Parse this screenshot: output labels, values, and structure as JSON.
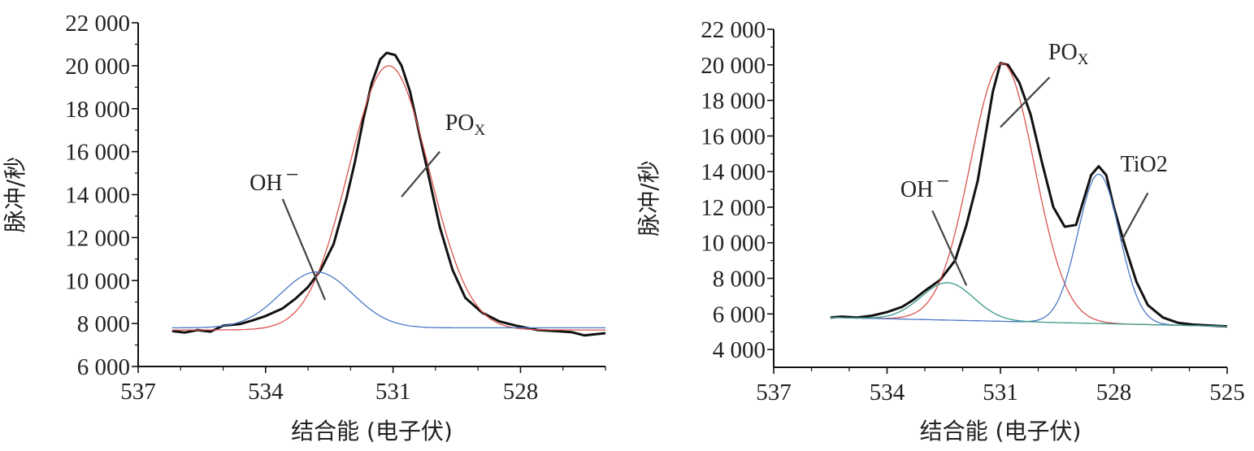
{
  "chart_data": [
    {
      "type": "line",
      "xlabel": "结合能 (电子伏)",
      "ylabel": "脉冲/秒",
      "xlim": [
        537,
        526
      ],
      "ylim": [
        6000,
        22000
      ],
      "x_reversed": true,
      "xticks": [
        537,
        534,
        531,
        528
      ],
      "yticks": [
        6000,
        8000,
        10000,
        12000,
        14000,
        16000,
        18000,
        20000,
        22000
      ],
      "ytick_labels": [
        "6 000",
        "8 000",
        "10 000",
        "12 000",
        "14 000",
        "16 000",
        "18 000",
        "20 000",
        "22 000"
      ],
      "grid": false,
      "series": [
        {
          "color": "#111111",
          "kind": "raw",
          "points": [
            [
              536.2,
              7650
            ],
            [
              535.9,
              7580
            ],
            [
              535.6,
              7700
            ],
            [
              535.3,
              7620
            ],
            [
              535.0,
              7900
            ],
            [
              534.6,
              7980
            ],
            [
              534.3,
              8150
            ],
            [
              534.0,
              8350
            ],
            [
              533.6,
              8700
            ],
            [
              533.3,
              9150
            ],
            [
              533.0,
              9700
            ],
            [
              532.7,
              10500
            ],
            [
              532.4,
              11700
            ],
            [
              532.1,
              13800
            ],
            [
              531.9,
              15500
            ],
            [
              531.7,
              17500
            ],
            [
              531.5,
              19200
            ],
            [
              531.3,
              20300
            ],
            [
              531.15,
              20600
            ],
            [
              530.95,
              20500
            ],
            [
              530.8,
              20000
            ],
            [
              530.6,
              18800
            ],
            [
              530.4,
              17000
            ],
            [
              530.2,
              15200
            ],
            [
              529.9,
              12500
            ],
            [
              529.6,
              10500
            ],
            [
              529.3,
              9200
            ],
            [
              528.9,
              8500
            ],
            [
              528.5,
              8100
            ],
            [
              528.1,
              7900
            ],
            [
              527.6,
              7700
            ],
            [
              527.2,
              7650
            ],
            [
              526.8,
              7600
            ],
            [
              526.5,
              7450
            ],
            [
              526.0,
              7550
            ]
          ]
        },
        {
          "color": "#d9534f",
          "kind": "fit",
          "center": 531.1,
          "amplitude": 12300,
          "sigma": 0.95,
          "baseline": 7700
        },
        {
          "color": "#4a78c6",
          "kind": "fit",
          "center": 532.8,
          "amplitude": 2600,
          "sigma": 0.85,
          "baseline": 7800
        }
      ],
      "annotations": [
        {
          "text": "PO",
          "sub": "X",
          "x": 529.3,
          "y": 17000,
          "line": [
            [
              529.9,
              16000
            ],
            [
              530.8,
              13900
            ]
          ]
        },
        {
          "text": "OH",
          "sup": "−",
          "x": 533.8,
          "y": 14200,
          "line": [
            [
              533.6,
              13800
            ],
            [
              532.6,
              9100
            ]
          ]
        }
      ]
    },
    {
      "type": "line",
      "xlabel": "结合能 (电子伏)",
      "ylabel": "脉冲/秒",
      "xlim": [
        537,
        525
      ],
      "ylim": [
        3000,
        22000
      ],
      "x_reversed": true,
      "xticks": [
        537,
        534,
        531,
        528,
        525
      ],
      "yticks": [
        4000,
        6000,
        8000,
        10000,
        12000,
        14000,
        16000,
        18000,
        20000,
        22000
      ],
      "ytick_labels": [
        "4 000",
        "6 000",
        "8 000",
        "10 000",
        "12 000",
        "14 000",
        "16 000",
        "18 000",
        "20 000",
        "22 000"
      ],
      "grid": false,
      "series": [
        {
          "color": "#111111",
          "kind": "raw",
          "points": [
            [
              535.5,
              5800
            ],
            [
              535.2,
              5850
            ],
            [
              534.8,
              5800
            ],
            [
              534.4,
              5900
            ],
            [
              534.0,
              6100
            ],
            [
              533.6,
              6400
            ],
            [
              533.3,
              6800
            ],
            [
              533.0,
              7300
            ],
            [
              532.6,
              7900
            ],
            [
              532.2,
              9000
            ],
            [
              531.9,
              11000
            ],
            [
              531.6,
              13500
            ],
            [
              531.4,
              16000
            ],
            [
              531.2,
              18500
            ],
            [
              531.0,
              20100
            ],
            [
              530.8,
              20000
            ],
            [
              530.5,
              19000
            ],
            [
              530.2,
              17200
            ],
            [
              529.9,
              14500
            ],
            [
              529.6,
              12000
            ],
            [
              529.3,
              10900
            ],
            [
              529.0,
              11000
            ],
            [
              528.8,
              12400
            ],
            [
              528.6,
              13800
            ],
            [
              528.4,
              14300
            ],
            [
              528.2,
              13800
            ],
            [
              528.0,
              12000
            ],
            [
              527.7,
              9800
            ],
            [
              527.4,
              7800
            ],
            [
              527.1,
              6500
            ],
            [
              526.7,
              5800
            ],
            [
              526.3,
              5500
            ],
            [
              525.9,
              5400
            ],
            [
              525.5,
              5350
            ],
            [
              525.0,
              5300
            ]
          ]
        },
        {
          "color": "#d9534f",
          "kind": "fit",
          "center": 530.95,
          "amplitude": 14500,
          "sigma": 0.85,
          "baseline_left": 5800,
          "baseline_right": 5300
        },
        {
          "color": "#4a78c6",
          "kind": "fit",
          "center": 528.4,
          "amplitude": 8400,
          "sigma": 0.55,
          "baseline_left": 5800,
          "baseline_right": 5300
        },
        {
          "color": "#3a9a8a",
          "kind": "fit",
          "center": 532.4,
          "amplitude": 2100,
          "sigma": 0.7,
          "baseline_left": 5800,
          "baseline_right": 5300
        }
      ],
      "annotations": [
        {
          "text": "PO",
          "sub": "X",
          "x": 529.2,
          "y": 20300,
          "line": [
            [
              529.7,
              19300
            ],
            [
              531.0,
              16500
            ]
          ]
        },
        {
          "text": "TiO2",
          "x": 527.2,
          "y": 14000,
          "line": [
            [
              527.1,
              12800
            ],
            [
              527.8,
              10100
            ]
          ]
        },
        {
          "text": "OH",
          "sup": "−",
          "x": 533.0,
          "y": 12600,
          "line": [
            [
              532.8,
              11800
            ],
            [
              531.9,
              7600
            ]
          ]
        }
      ]
    }
  ]
}
